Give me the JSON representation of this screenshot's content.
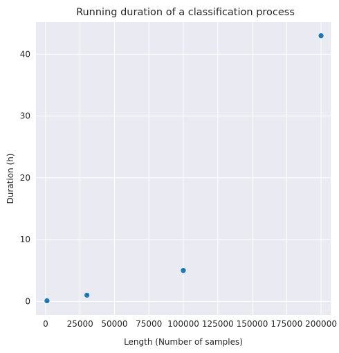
{
  "chart_data": {
    "type": "scatter",
    "title": "Running duration of a classification process",
    "xlabel": "Length (Number of samples)",
    "ylabel": "Duration (h)",
    "xlim": [
      -7000,
      207000
    ],
    "ylim": [
      -2.2,
      45.2
    ],
    "x_ticks": [
      0,
      25000,
      50000,
      75000,
      100000,
      125000,
      150000,
      175000,
      200000
    ],
    "y_ticks": [
      0,
      10,
      20,
      30,
      40
    ],
    "grid": true,
    "background": "#EAEAF2",
    "point_color": "#1F77B4",
    "points": [
      {
        "x": 1000,
        "y": 0.1
      },
      {
        "x": 30000,
        "y": 1.0
      },
      {
        "x": 100000,
        "y": 5.0
      },
      {
        "x": 200000,
        "y": 43.0
      }
    ]
  }
}
